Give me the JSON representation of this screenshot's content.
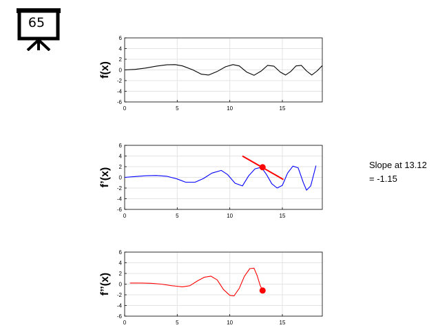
{
  "badge": {
    "number": "65",
    "icon": "presentation-board-icon"
  },
  "annotation": {
    "line1": "Slope at 13.12",
    "line2": "= -1.15"
  },
  "chart_data": [
    {
      "type": "line",
      "ylabel": "f(x)",
      "xlim": [
        0,
        18.8
      ],
      "ylim": [
        -6,
        6
      ],
      "xticks": [
        0,
        5,
        10,
        15
      ],
      "yticks": [
        -6,
        -4,
        -2,
        0,
        2,
        4,
        6
      ],
      "grid": true,
      "series": [
        {
          "color": "#000000",
          "x": [
            0,
            1,
            2,
            3,
            4,
            4.8,
            5.5,
            6.5,
            7.3,
            8.0,
            8.8,
            9.6,
            10.3,
            10.9,
            11.6,
            12.3,
            13.0,
            13.6,
            14.2,
            14.8,
            15.3,
            15.8,
            16.3,
            16.8,
            17.3,
            17.8,
            18.3,
            18.8
          ],
          "y": [
            0,
            0.1,
            0.35,
            0.7,
            0.95,
            1.0,
            0.75,
            0.0,
            -0.8,
            -0.95,
            -0.3,
            0.6,
            1.0,
            0.75,
            -0.4,
            -1.0,
            -0.2,
            0.85,
            0.7,
            -0.4,
            -0.95,
            -0.3,
            0.75,
            0.85,
            -0.2,
            -0.95,
            -0.2,
            0.8
          ]
        }
      ]
    },
    {
      "type": "line",
      "ylabel": "f’(x)",
      "xlim": [
        0,
        18.8
      ],
      "ylim": [
        -6,
        6
      ],
      "xticks": [
        0,
        5,
        10,
        15
      ],
      "yticks": [
        -6,
        -4,
        -2,
        0,
        2,
        4,
        6
      ],
      "grid": true,
      "series": [
        {
          "color": "#0000ff",
          "x": [
            0,
            1,
            2,
            3,
            4,
            5,
            5.8,
            6.7,
            7.5,
            8.3,
            9.2,
            9.8,
            10.5,
            11.2,
            11.8,
            12.4,
            13.0,
            13.5,
            14.0,
            14.5,
            15.0,
            15.5,
            16.0,
            16.5,
            17.0,
            17.3,
            17.7,
            18.2
          ],
          "y": [
            0,
            0.15,
            0.3,
            0.35,
            0.2,
            -0.3,
            -0.9,
            -0.9,
            -0.2,
            0.8,
            1.3,
            0.5,
            -1.1,
            -1.6,
            0.3,
            1.6,
            1.9,
            0.5,
            -1.2,
            -2.0,
            -1.5,
            0.8,
            2.1,
            1.8,
            -1.0,
            -2.4,
            -1.6,
            2.2
          ]
        }
      ],
      "tangent": {
        "x": [
          11.2,
          15.1
        ],
        "y": [
          4.0,
          -0.4
        ],
        "color": "#ff0000"
      },
      "marker": {
        "x": 13.12,
        "y": 1.9,
        "color": "#ff0000"
      }
    },
    {
      "type": "line",
      "ylabel": "f’’(x)",
      "xlim": [
        0,
        18.8
      ],
      "ylim": [
        -6,
        6
      ],
      "xticks": [
        0,
        5,
        10,
        15
      ],
      "yticks": [
        -6,
        -4,
        -2,
        0,
        2,
        4,
        6
      ],
      "grid": true,
      "series": [
        {
          "color": "#ff0000",
          "x": [
            0.5,
            1.5,
            2.5,
            3.5,
            4.5,
            5.5,
            6.2,
            7.0,
            7.6,
            8.2,
            8.8,
            9.4,
            10.0,
            10.4,
            10.9,
            11.4,
            11.9,
            12.3,
            12.6,
            12.9,
            13.12
          ],
          "y": [
            0.2,
            0.2,
            0.15,
            0.0,
            -0.3,
            -0.5,
            -0.3,
            0.7,
            1.3,
            1.5,
            0.8,
            -1.0,
            -2.1,
            -2.2,
            -0.8,
            1.5,
            2.9,
            3.0,
            1.6,
            -0.3,
            -1.2
          ]
        }
      ],
      "marker": {
        "x": 13.12,
        "y": -1.2,
        "color": "#ff0000"
      }
    }
  ]
}
